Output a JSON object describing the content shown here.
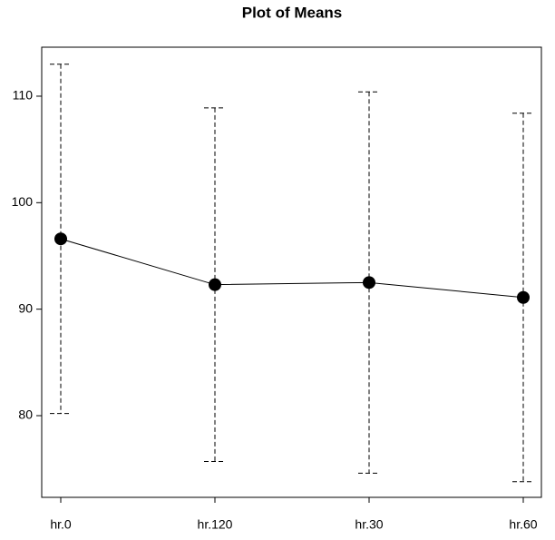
{
  "chart_data": {
    "type": "line",
    "title": "Plot of Means",
    "categories": [
      "hr.0",
      "hr.120",
      "hr.30",
      "hr.60"
    ],
    "values": [
      96.6,
      92.3,
      92.5,
      91.1
    ],
    "errors": [
      16.4,
      16.6,
      17.9,
      17.3
    ],
    "color": "#000000",
    "ylim": [
      72.33,
      114.6
    ],
    "yticks": [
      80,
      90,
      100,
      110
    ]
  }
}
